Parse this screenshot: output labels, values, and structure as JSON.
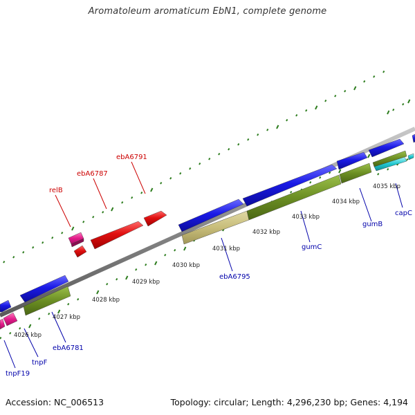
{
  "header": {
    "title": "Aromatoleum aromaticum EbN1, complete genome"
  },
  "footer": {
    "accession": "Accession: NC_006513",
    "topology": "Topology: circular; Length: 4,296,230 bp; Genes: 4,194"
  },
  "scale_labels": {
    "k4026": "4026 kbp",
    "k4027": "4027 kbp",
    "k4028": "4028 kbp",
    "k4029": "4029 kbp",
    "k4030": "4030 kbp",
    "k4031": "4031 kbp",
    "k4032": "4032 kbp",
    "k4033": "4033 kbp",
    "k4034": "4034 kbp",
    "k4035": "4035 kbp"
  },
  "gene_labels": {
    "relB": "relB",
    "ebA6787": "ebA6787",
    "ebA6791": "ebA6791",
    "ebA6795": "ebA6795",
    "gumC": "gumC",
    "gumB": "gumB",
    "capC": "capC",
    "ebA6781": "ebA6781",
    "tnpF": "tnpF",
    "tnpF19": "tnpF19"
  },
  "colors": {
    "backbone": "#8a8a8a",
    "tick": "#2e7d1f",
    "cds_blue": "#1a1ae6",
    "cds_olive": "#6b8e23",
    "cds_khaki": "#c8bd7a",
    "cds_red": "#e01010",
    "cds_magenta": "#e21b8a",
    "cds_cyan": "#20c8d0",
    "label_red": "#cc0000",
    "label_blue": "#0000aa"
  }
}
